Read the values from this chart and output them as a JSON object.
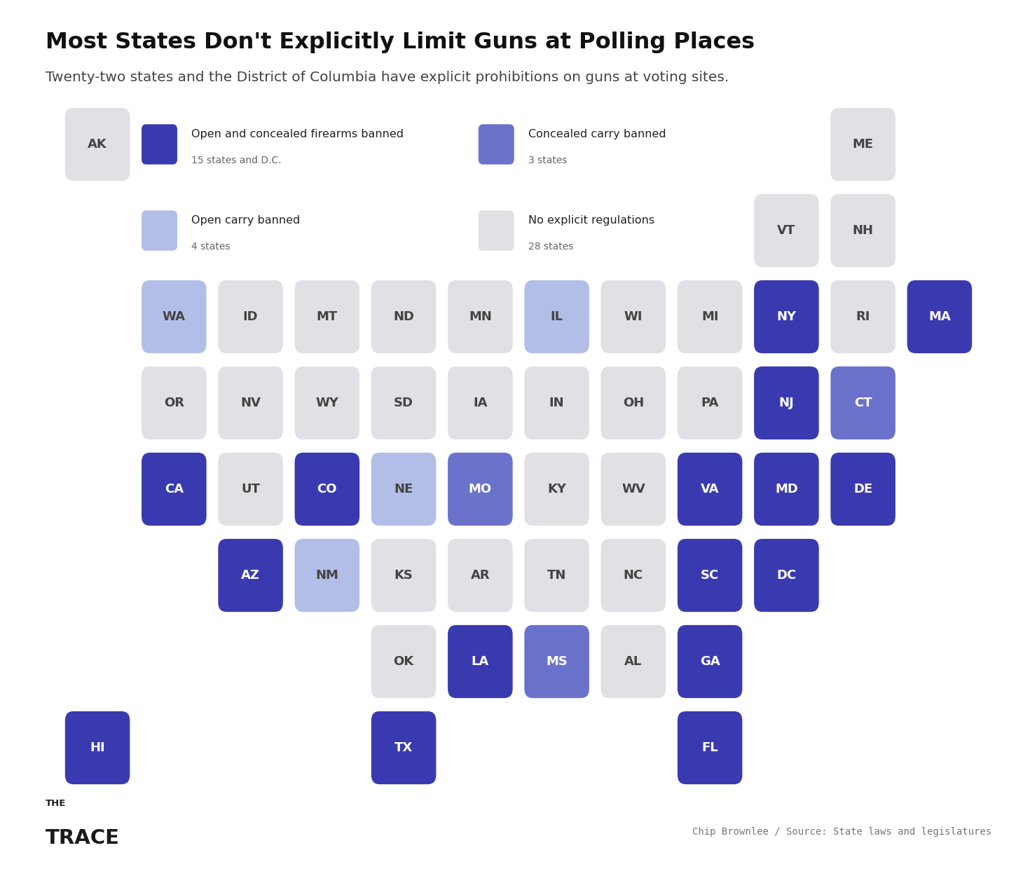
{
  "title": "Most States Don't Explicitly Limit Guns at Polling Places",
  "subtitle": "Twenty-two states and the District of Columbia have explicit prohibitions on guns at voting sites.",
  "bg_color": "#ffffff",
  "legend": [
    {
      "label": "Open and concealed firearms banned",
      "sublabel": "15 states and D.C.",
      "color": "#3a3ab0"
    },
    {
      "label": "Concealed carry banned",
      "sublabel": "3 states",
      "color": "#6b72cc"
    },
    {
      "label": "Open carry banned",
      "sublabel": "4 states",
      "color": "#b3bee8"
    },
    {
      "label": "No explicit regulations",
      "sublabel": "28 states",
      "color": "#e0e0e5"
    }
  ],
  "categories": {
    "both_banned": [
      "CA",
      "CO",
      "NY",
      "NJ",
      "MA",
      "VA",
      "MD",
      "DE",
      "SC",
      "DC",
      "GA",
      "LA",
      "HI",
      "TX",
      "FL",
      "AZ"
    ],
    "concealed_banned": [
      "MO",
      "MS",
      "CT"
    ],
    "open_banned": [
      "WA",
      "IL",
      "NE",
      "NM"
    ],
    "no_reg": [
      "AK",
      "ME",
      "VT",
      "NH",
      "ID",
      "MT",
      "ND",
      "MN",
      "WI",
      "MI",
      "RI",
      "OR",
      "NV",
      "WY",
      "SD",
      "IA",
      "IN",
      "OH",
      "PA",
      "UT",
      "KY",
      "WV",
      "KS",
      "AR",
      "TN",
      "NC",
      "OK",
      "AL"
    ]
  },
  "color_both": "#3a3ab0",
  "color_concealed": "#6b72cc",
  "color_open": "#b3bee8",
  "color_noreg": "#e0e0e5",
  "states_layout": [
    {
      "abbr": "AK",
      "col": 0,
      "row": 0
    },
    {
      "abbr": "ME",
      "col": 10,
      "row": 0
    },
    {
      "abbr": "VT",
      "col": 9,
      "row": 1
    },
    {
      "abbr": "NH",
      "col": 10,
      "row": 1
    },
    {
      "abbr": "WA",
      "col": 1,
      "row": 2
    },
    {
      "abbr": "ID",
      "col": 2,
      "row": 2
    },
    {
      "abbr": "MT",
      "col": 3,
      "row": 2
    },
    {
      "abbr": "ND",
      "col": 4,
      "row": 2
    },
    {
      "abbr": "MN",
      "col": 5,
      "row": 2
    },
    {
      "abbr": "IL",
      "col": 6,
      "row": 2
    },
    {
      "abbr": "WI",
      "col": 7,
      "row": 2
    },
    {
      "abbr": "MI",
      "col": 8,
      "row": 2
    },
    {
      "abbr": "NY",
      "col": 9,
      "row": 2
    },
    {
      "abbr": "RI",
      "col": 10,
      "row": 2
    },
    {
      "abbr": "MA",
      "col": 11,
      "row": 2
    },
    {
      "abbr": "OR",
      "col": 1,
      "row": 3
    },
    {
      "abbr": "NV",
      "col": 2,
      "row": 3
    },
    {
      "abbr": "WY",
      "col": 3,
      "row": 3
    },
    {
      "abbr": "SD",
      "col": 4,
      "row": 3
    },
    {
      "abbr": "IA",
      "col": 5,
      "row": 3
    },
    {
      "abbr": "IN",
      "col": 6,
      "row": 3
    },
    {
      "abbr": "OH",
      "col": 7,
      "row": 3
    },
    {
      "abbr": "PA",
      "col": 8,
      "row": 3
    },
    {
      "abbr": "NJ",
      "col": 9,
      "row": 3
    },
    {
      "abbr": "CT",
      "col": 10,
      "row": 3
    },
    {
      "abbr": "CA",
      "col": 1,
      "row": 4
    },
    {
      "abbr": "UT",
      "col": 2,
      "row": 4
    },
    {
      "abbr": "CO",
      "col": 3,
      "row": 4
    },
    {
      "abbr": "NE",
      "col": 4,
      "row": 4
    },
    {
      "abbr": "MO",
      "col": 5,
      "row": 4
    },
    {
      "abbr": "KY",
      "col": 6,
      "row": 4
    },
    {
      "abbr": "WV",
      "col": 7,
      "row": 4
    },
    {
      "abbr": "VA",
      "col": 8,
      "row": 4
    },
    {
      "abbr": "MD",
      "col": 9,
      "row": 4
    },
    {
      "abbr": "DE",
      "col": 10,
      "row": 4
    },
    {
      "abbr": "AZ",
      "col": 2,
      "row": 5
    },
    {
      "abbr": "NM",
      "col": 3,
      "row": 5
    },
    {
      "abbr": "KS",
      "col": 4,
      "row": 5
    },
    {
      "abbr": "AR",
      "col": 5,
      "row": 5
    },
    {
      "abbr": "TN",
      "col": 6,
      "row": 5
    },
    {
      "abbr": "NC",
      "col": 7,
      "row": 5
    },
    {
      "abbr": "SC",
      "col": 8,
      "row": 5
    },
    {
      "abbr": "DC",
      "col": 9,
      "row": 5
    },
    {
      "abbr": "OK",
      "col": 4,
      "row": 6
    },
    {
      "abbr": "LA",
      "col": 5,
      "row": 6
    },
    {
      "abbr": "MS",
      "col": 6,
      "row": 6
    },
    {
      "abbr": "AL",
      "col": 7,
      "row": 6
    },
    {
      "abbr": "GA",
      "col": 8,
      "row": 6
    },
    {
      "abbr": "HI",
      "col": 0,
      "row": 7
    },
    {
      "abbr": "TX",
      "col": 4,
      "row": 7
    },
    {
      "abbr": "FL",
      "col": 8,
      "row": 7
    }
  ],
  "attribution": "Chip Brownlee / Source: State laws and legislatures",
  "n_cols": 12,
  "n_rows": 8
}
